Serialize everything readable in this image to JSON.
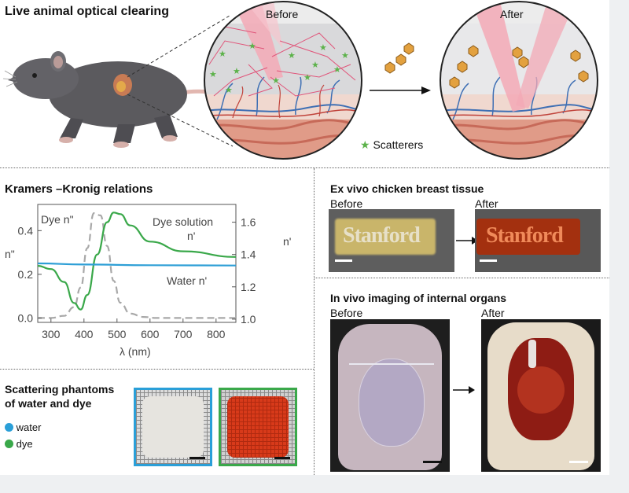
{
  "top": {
    "title": "Live animal optical clearing",
    "before_label": "Before",
    "after_label": "After",
    "scatterers_label": "Scatterers"
  },
  "kk": {
    "title": "Kramers –Kronig relations",
    "chart_data": {
      "type": "line",
      "title": "",
      "xlabel": "λ (nm)",
      "ylabel_left": "n\"",
      "ylabel_right": "n'",
      "xlim": [
        260,
        860
      ],
      "ylim_left": [
        -0.02,
        0.52
      ],
      "ylim_right": [
        0.98,
        1.71
      ],
      "x_ticks": [
        300,
        400,
        500,
        600,
        700,
        800
      ],
      "y_left_ticks": [
        "0.0",
        "0.2",
        "0.4"
      ],
      "y_right_ticks": [
        "1.0",
        "1.2",
        "1.4",
        "1.6"
      ],
      "series": [
        {
          "name": "Dye n\"",
          "axis": "left",
          "color": "#a8a8a8",
          "dashed": true,
          "x": [
            260,
            300,
            340,
            370,
            390,
            410,
            430,
            450,
            470,
            490,
            510,
            540,
            580,
            620,
            700,
            860
          ],
          "y": [
            0.0,
            0.0,
            0.01,
            0.05,
            0.14,
            0.32,
            0.48,
            0.47,
            0.33,
            0.17,
            0.07,
            0.02,
            0.005,
            0.0,
            0.0,
            0.0
          ]
        },
        {
          "name": "Dye solution n'",
          "axis": "right",
          "color": "#3aa84a",
          "dashed": false,
          "x": [
            260,
            300,
            340,
            370,
            390,
            410,
            440,
            470,
            490,
            510,
            540,
            600,
            700,
            860
          ],
          "y": [
            1.33,
            1.31,
            1.23,
            1.1,
            1.06,
            1.15,
            1.4,
            1.6,
            1.66,
            1.65,
            1.58,
            1.48,
            1.42,
            1.385
          ]
        },
        {
          "name": "Water n'",
          "axis": "right",
          "color": "#2e9fd6",
          "dashed": false,
          "x": [
            260,
            400,
            600,
            860
          ],
          "y": [
            1.345,
            1.338,
            1.334,
            1.332
          ]
        }
      ],
      "labels": {
        "dye_n2": "Dye n\"",
        "dye_solution": "Dye solution",
        "dye_solution_n": "n'",
        "water_n": "Water n'"
      }
    }
  },
  "phantoms": {
    "title_line1": "Scattering phantoms",
    "title_line2": "of water and dye",
    "legend": [
      {
        "label": "water",
        "color": "#2a9fd8"
      },
      {
        "label": "dye",
        "color": "#3aa84a"
      }
    ]
  },
  "chicken": {
    "title": "Ex vivo chicken breast tissue",
    "before_label": "Before",
    "after_label": "After",
    "word_left": "Stanford",
    "word_right": "Stanford"
  },
  "organs": {
    "title": "In vivo imaging of internal organs",
    "before_label": "Before",
    "after_label": "After"
  }
}
